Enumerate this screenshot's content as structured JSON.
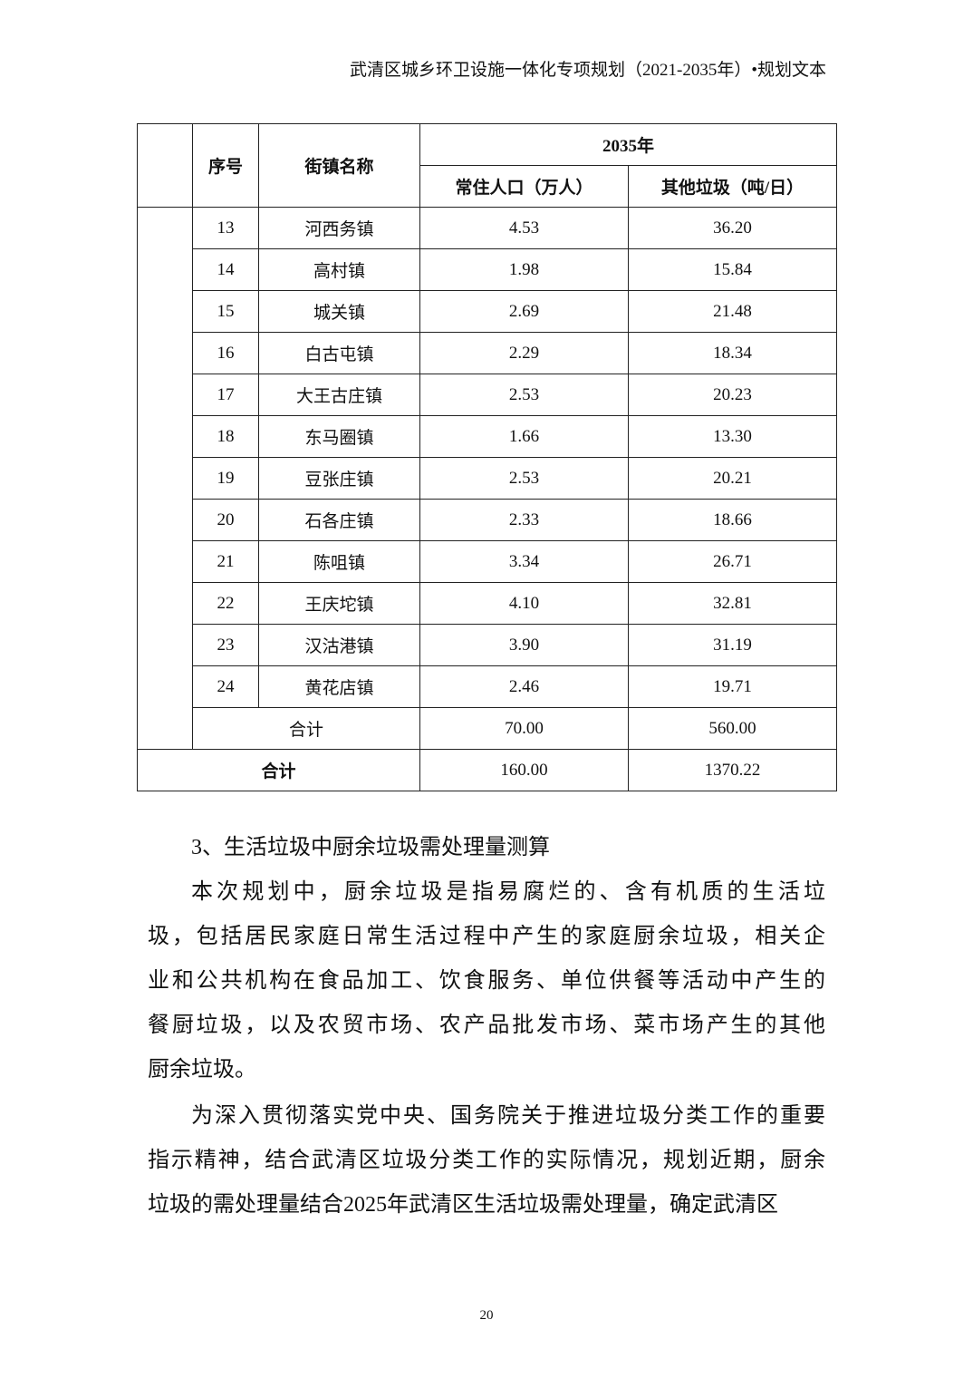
{
  "header": "武清区城乡环卫设施一体化专项规划（2021-2035年）•规划文本",
  "table": {
    "col_index": "序号",
    "col_name": "街镇名称",
    "year": "2035年",
    "col_pop": "常住人口（万人）",
    "col_waste": "其他垃圾（吨/日）",
    "rows": [
      {
        "no": "13",
        "name": "河西务镇",
        "pop": "4.53",
        "waste": "36.20"
      },
      {
        "no": "14",
        "name": "高村镇",
        "pop": "1.98",
        "waste": "15.84"
      },
      {
        "no": "15",
        "name": "城关镇",
        "pop": "2.69",
        "waste": "21.48"
      },
      {
        "no": "16",
        "name": "白古屯镇",
        "pop": "2.29",
        "waste": "18.34"
      },
      {
        "no": "17",
        "name": "大王古庄镇",
        "pop": "2.53",
        "waste": "20.23"
      },
      {
        "no": "18",
        "name": "东马圈镇",
        "pop": "1.66",
        "waste": "13.30"
      },
      {
        "no": "19",
        "name": "豆张庄镇",
        "pop": "2.53",
        "waste": "20.21"
      },
      {
        "no": "20",
        "name": "石各庄镇",
        "pop": "2.33",
        "waste": "18.66"
      },
      {
        "no": "21",
        "name": "陈咀镇",
        "pop": "3.34",
        "waste": "26.71"
      },
      {
        "no": "22",
        "name": "王庆坨镇",
        "pop": "4.10",
        "waste": "32.81"
      },
      {
        "no": "23",
        "name": "汉沽港镇",
        "pop": "3.90",
        "waste": "31.19"
      },
      {
        "no": "24",
        "name": "黄花店镇",
        "pop": "2.46",
        "waste": "19.71"
      }
    ],
    "subtotal": {
      "label": "合计",
      "pop": "70.00",
      "waste": "560.00"
    },
    "total": {
      "label": "合计",
      "pop": "160.00",
      "waste": "1370.22"
    }
  },
  "section_heading": "3、生活垃圾中厨余垃圾需处理量测算",
  "paragraph1": [
    "本次规划中，厨余垃圾是指易腐烂的、含有机质的生活垃",
    "圾，包括居民家庭日常生活过程中产生的家庭厨余垃圾，相关企",
    "业和公共机构在食品加工、饮食服务、单位供餐等活动中产生的",
    "餐厨垃圾，以及农贸市场、农产品批发市场、菜市场产生的其他",
    "厨余垃圾。"
  ],
  "paragraph2": [
    "为深入贯彻落实党中央、国务院关于推进垃圾分类工作的重要",
    "指示精神，结合武清区垃圾分类工作的实际情况，规划近期，厨余",
    "垃圾的需处理量结合2025年武清区生活垃圾需处理量，确定武清区"
  ],
  "page_number": "20"
}
